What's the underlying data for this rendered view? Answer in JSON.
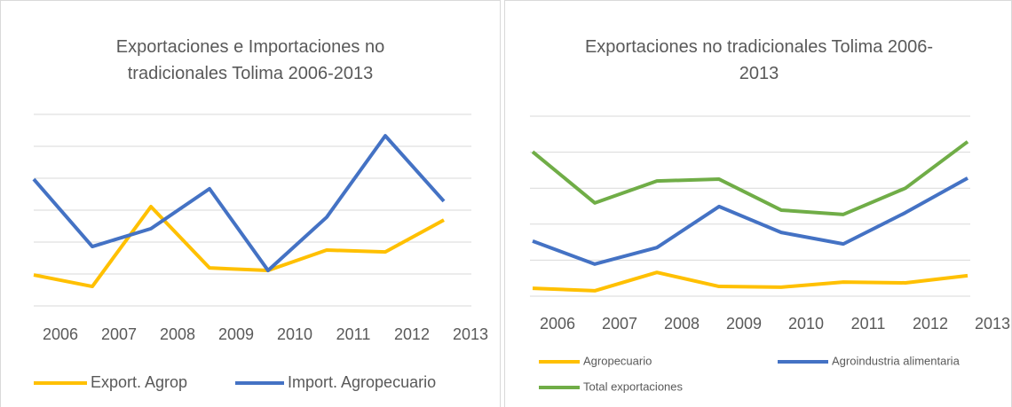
{
  "chart_data": [
    {
      "type": "line",
      "title": "Exportaciones e Importaciones no tradicionales Tolima 2006-2013",
      "categories": [
        "2006",
        "2007",
        "2008",
        "2009",
        "2010",
        "2011",
        "2012",
        "2013"
      ],
      "series": [
        {
          "name": "Export. Agrop",
          "color": "#ffc000",
          "values": [
            0.97,
            0.61,
            3.11,
            1.19,
            1.11,
            1.75,
            1.69,
            2.69
          ]
        },
        {
          "name": "Import. Agropecuario",
          "color": "#4472c4",
          "values": [
            3.97,
            1.86,
            2.42,
            3.67,
            1.11,
            2.78,
            5.33,
            3.28
          ]
        }
      ],
      "ylim": [
        0,
        6
      ],
      "yticks": [
        0,
        1,
        2,
        3,
        4,
        5,
        6
      ],
      "grid": true,
      "legend": "bottom"
    },
    {
      "type": "line",
      "title": "Exportaciones no tradicionales Tolima 2006-2013",
      "categories": [
        "2006",
        "2007",
        "2008",
        "2009",
        "2010",
        "2011",
        "2012",
        "2013"
      ],
      "series": [
        {
          "name": "Agropecuario",
          "color": "#ffc000",
          "values": [
            0.22,
            0.15,
            0.66,
            0.27,
            0.25,
            0.39,
            0.37,
            0.57
          ]
        },
        {
          "name": "Agroindustria alimentaria",
          "color": "#4472c4",
          "values": [
            1.53,
            0.89,
            1.35,
            2.49,
            1.77,
            1.45,
            2.32,
            3.28
          ]
        },
        {
          "name": "Total exportaciones",
          "color": "#70ad47",
          "values": [
            4.01,
            2.59,
            3.2,
            3.25,
            2.39,
            2.27,
            3.0,
            4.29
          ]
        }
      ],
      "ylim": [
        0,
        5
      ],
      "yticks": [
        0,
        1,
        2,
        3,
        4,
        5
      ],
      "grid": true,
      "legend": "bottom"
    }
  ]
}
